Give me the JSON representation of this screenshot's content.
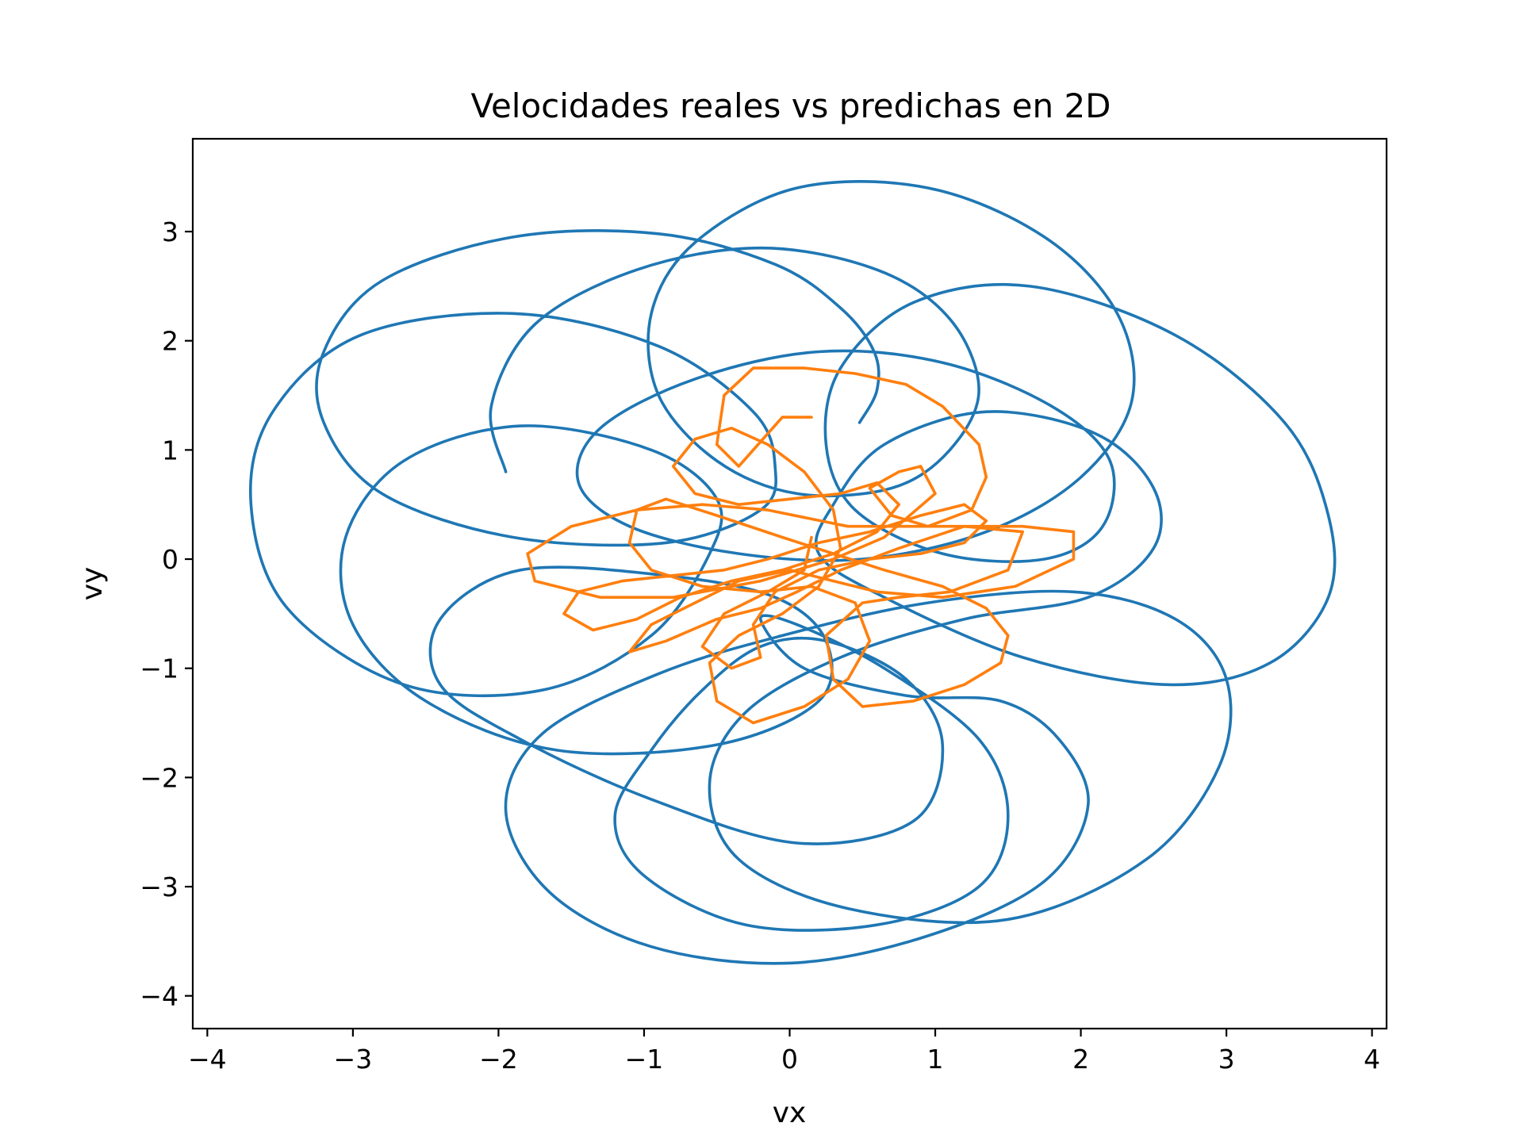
{
  "chart_data": {
    "type": "line",
    "title": "Velocidades reales vs predichas en 2D",
    "xlabel": "vx",
    "ylabel": "vy",
    "xlim": [
      -4.1,
      4.1
    ],
    "ylim": [
      -4.3,
      3.85
    ],
    "xticks": [
      -4,
      -3,
      -2,
      -1,
      0,
      1,
      2,
      3,
      4
    ],
    "yticks": [
      3,
      2,
      1,
      0,
      -1,
      -2,
      -3,
      -4
    ],
    "xtick_labels": [
      "−4",
      "−3",
      "−2",
      "−1",
      "0",
      "1",
      "2",
      "3",
      "4"
    ],
    "ytick_labels": [
      "3",
      "2",
      "1",
      "0",
      "−1",
      "−2",
      "−3",
      "−4"
    ],
    "grid": false,
    "legend": "none",
    "series": [
      {
        "color": "#1f77b4",
        "style": "smooth",
        "points": [
          [
            0.48,
            1.25
          ],
          [
            0.6,
            1.55
          ],
          [
            0.58,
            1.9
          ],
          [
            0.35,
            2.3
          ],
          [
            -0.1,
            2.7
          ],
          [
            -0.9,
            2.98
          ],
          [
            -1.9,
            2.95
          ],
          [
            -2.8,
            2.55
          ],
          [
            -3.2,
            1.9
          ],
          [
            -3.2,
            1.25
          ],
          [
            -2.8,
            0.6
          ],
          [
            -1.9,
            0.2
          ],
          [
            -0.85,
            0.15
          ],
          [
            -0.2,
            0.45
          ],
          [
            -0.1,
            0.85
          ],
          [
            -0.25,
            1.35
          ],
          [
            -0.9,
            1.95
          ],
          [
            -1.9,
            2.25
          ],
          [
            -2.95,
            2.05
          ],
          [
            -3.55,
            1.35
          ],
          [
            -3.7,
            0.5
          ],
          [
            -3.45,
            -0.45
          ],
          [
            -2.65,
            -1.15
          ],
          [
            -1.7,
            -1.2
          ],
          [
            -0.95,
            -0.7
          ],
          [
            -0.55,
            0.05
          ],
          [
            -0.5,
            0.55
          ],
          [
            -0.95,
            1.0
          ],
          [
            -1.85,
            1.22
          ],
          [
            -2.65,
            0.9
          ],
          [
            -3.05,
            0.2
          ],
          [
            -3.0,
            -0.6
          ],
          [
            -2.5,
            -1.3
          ],
          [
            -1.6,
            -1.75
          ],
          [
            -0.5,
            -1.7
          ],
          [
            0.2,
            -1.3
          ],
          [
            0.25,
            -0.75
          ],
          [
            -0.1,
            -0.35
          ],
          [
            -0.85,
            -0.15
          ],
          [
            -1.85,
            -0.1
          ],
          [
            -2.4,
            -0.55
          ],
          [
            -2.4,
            -1.15
          ],
          [
            -1.85,
            -1.65
          ],
          [
            -0.95,
            -2.2
          ],
          [
            0.05,
            -2.6
          ],
          [
            0.85,
            -2.4
          ],
          [
            1.05,
            -1.7
          ],
          [
            0.8,
            -1.1
          ],
          [
            0.25,
            -0.75
          ],
          [
            -0.2,
            -0.8
          ],
          [
            -0.6,
            -1.2
          ],
          [
            -0.95,
            -1.75
          ],
          [
            -1.2,
            -2.35
          ],
          [
            -1.0,
            -2.9
          ],
          [
            -0.3,
            -3.35
          ],
          [
            0.6,
            -3.35
          ],
          [
            1.3,
            -3.0
          ],
          [
            1.5,
            -2.35
          ],
          [
            1.3,
            -1.65
          ],
          [
            0.65,
            -1.0
          ],
          [
            0.05,
            -0.6
          ],
          [
            -0.2,
            -0.55
          ],
          [
            0.1,
            -1.0
          ],
          [
            0.8,
            -1.25
          ],
          [
            1.45,
            -1.3
          ],
          [
            1.85,
            -1.65
          ],
          [
            2.05,
            -2.25
          ],
          [
            1.75,
            -2.95
          ],
          [
            0.95,
            -3.45
          ],
          [
            0.0,
            -3.7
          ],
          [
            -0.95,
            -3.55
          ],
          [
            -1.65,
            -3.05
          ],
          [
            -1.95,
            -2.3
          ],
          [
            -1.7,
            -1.6
          ],
          [
            -0.9,
            -1.05
          ],
          [
            -0.05,
            -0.7
          ],
          [
            0.95,
            -0.4
          ],
          [
            1.95,
            -0.3
          ],
          [
            2.65,
            -0.55
          ],
          [
            3.0,
            -1.1
          ],
          [
            2.95,
            -1.9
          ],
          [
            2.45,
            -2.75
          ],
          [
            1.5,
            -3.3
          ],
          [
            0.4,
            -3.2
          ],
          [
            -0.35,
            -2.75
          ],
          [
            -0.55,
            -2.05
          ],
          [
            -0.3,
            -1.4
          ],
          [
            0.35,
            -0.9
          ],
          [
            1.2,
            -0.55
          ],
          [
            2.05,
            -0.35
          ],
          [
            2.5,
            0.1
          ],
          [
            2.5,
            0.65
          ],
          [
            2.1,
            1.15
          ],
          [
            1.35,
            1.35
          ],
          [
            0.65,
            1.05
          ],
          [
            0.3,
            0.5
          ],
          [
            0.2,
            0.05
          ],
          [
            0.65,
            -0.35
          ],
          [
            1.6,
            -0.9
          ],
          [
            2.6,
            -1.15
          ],
          [
            3.3,
            -0.95
          ],
          [
            3.7,
            -0.35
          ],
          [
            3.7,
            0.4
          ],
          [
            3.4,
            1.25
          ],
          [
            2.65,
            2.05
          ],
          [
            1.65,
            2.5
          ],
          [
            0.85,
            2.35
          ],
          [
            0.35,
            1.75
          ],
          [
            0.25,
            1.05
          ],
          [
            0.45,
            0.45
          ],
          [
            1.05,
            0.05
          ],
          [
            1.75,
            0.0
          ],
          [
            2.15,
            0.3
          ],
          [
            2.2,
            0.9
          ],
          [
            1.8,
            1.4
          ],
          [
            1.05,
            1.8
          ],
          [
            0.2,
            1.9
          ],
          [
            -0.65,
            1.65
          ],
          [
            -1.3,
            1.2
          ],
          [
            -1.45,
            0.7
          ],
          [
            -1.1,
            0.3
          ],
          [
            -0.35,
            0.05
          ],
          [
            0.5,
            0.0
          ],
          [
            1.35,
            0.25
          ],
          [
            2.0,
            0.75
          ],
          [
            2.35,
            1.45
          ],
          [
            2.25,
            2.25
          ],
          [
            1.75,
            2.95
          ],
          [
            0.95,
            3.4
          ],
          [
            0.05,
            3.4
          ],
          [
            -0.65,
            2.9
          ],
          [
            -0.95,
            2.25
          ],
          [
            -0.9,
            1.5
          ],
          [
            -0.5,
            0.9
          ],
          [
            0.05,
            0.6
          ],
          [
            0.7,
            0.65
          ],
          [
            1.1,
            1.0
          ],
          [
            1.3,
            1.55
          ],
          [
            1.1,
            2.2
          ],
          [
            0.6,
            2.65
          ],
          [
            -0.2,
            2.85
          ],
          [
            -1.05,
            2.65
          ],
          [
            -1.75,
            2.15
          ],
          [
            -2.05,
            1.4
          ],
          [
            -1.95,
            0.8
          ]
        ]
      },
      {
        "color": "#ff7f0e",
        "style": "linear",
        "points": [
          [
            0.15,
            1.3
          ],
          [
            -0.05,
            1.3
          ],
          [
            -0.35,
            0.85
          ],
          [
            -0.5,
            1.05
          ],
          [
            -0.45,
            1.5
          ],
          [
            -0.25,
            1.75
          ],
          [
            0.1,
            1.75
          ],
          [
            0.45,
            1.7
          ],
          [
            0.8,
            1.6
          ],
          [
            1.05,
            1.4
          ],
          [
            1.3,
            1.05
          ],
          [
            1.35,
            0.75
          ],
          [
            1.25,
            0.45
          ],
          [
            0.95,
            0.3
          ],
          [
            0.7,
            0.4
          ],
          [
            0.55,
            0.65
          ],
          [
            0.75,
            0.8
          ],
          [
            0.9,
            0.85
          ],
          [
            1.0,
            0.6
          ],
          [
            0.65,
            0.2
          ],
          [
            0.3,
            0.0
          ],
          [
            -0.2,
            -0.2
          ],
          [
            -0.8,
            -0.35
          ],
          [
            -1.3,
            -0.35
          ],
          [
            -1.75,
            -0.2
          ],
          [
            -1.8,
            0.05
          ],
          [
            -1.5,
            0.3
          ],
          [
            -1.05,
            0.45
          ],
          [
            -0.6,
            0.5
          ],
          [
            -0.15,
            0.45
          ],
          [
            0.4,
            0.3
          ],
          [
            1.05,
            0.3
          ],
          [
            1.6,
            0.3
          ],
          [
            1.95,
            0.25
          ],
          [
            1.95,
            0.0
          ],
          [
            1.55,
            -0.25
          ],
          [
            1.05,
            -0.35
          ],
          [
            0.6,
            -0.3
          ],
          [
            0.3,
            -0.2
          ],
          [
            0.0,
            -0.1
          ],
          [
            -0.35,
            -0.2
          ],
          [
            -0.65,
            -0.4
          ],
          [
            -0.95,
            -0.6
          ],
          [
            -1.1,
            -0.85
          ],
          [
            -0.85,
            -0.75
          ],
          [
            -0.5,
            -0.55
          ],
          [
            -0.2,
            -0.45
          ],
          [
            0.05,
            -0.3
          ],
          [
            0.35,
            -0.1
          ],
          [
            0.75,
            0.1
          ],
          [
            1.2,
            0.3
          ],
          [
            1.6,
            0.25
          ],
          [
            1.5,
            -0.1
          ],
          [
            1.1,
            -0.3
          ],
          [
            0.75,
            -0.35
          ],
          [
            0.5,
            -0.4
          ],
          [
            0.25,
            -0.7
          ],
          [
            0.3,
            -1.1
          ],
          [
            0.5,
            -1.35
          ],
          [
            0.85,
            -1.3
          ],
          [
            1.2,
            -1.15
          ],
          [
            1.45,
            -0.95
          ],
          [
            1.5,
            -0.7
          ],
          [
            1.35,
            -0.45
          ],
          [
            1.05,
            -0.25
          ],
          [
            0.65,
            -0.1
          ],
          [
            0.3,
            0.05
          ],
          [
            -0.05,
            0.2
          ],
          [
            -0.5,
            0.4
          ],
          [
            -0.85,
            0.55
          ],
          [
            -1.05,
            0.45
          ],
          [
            -1.1,
            0.15
          ],
          [
            -0.95,
            -0.1
          ],
          [
            -0.6,
            -0.25
          ],
          [
            -0.2,
            -0.3
          ],
          [
            0.15,
            -0.25
          ],
          [
            0.45,
            -0.4
          ],
          [
            0.55,
            -0.75
          ],
          [
            0.4,
            -1.1
          ],
          [
            0.1,
            -1.35
          ],
          [
            -0.25,
            -1.5
          ],
          [
            -0.5,
            -1.3
          ],
          [
            -0.55,
            -0.95
          ],
          [
            -0.35,
            -0.7
          ],
          [
            -0.05,
            -0.5
          ],
          [
            0.2,
            -0.25
          ],
          [
            0.35,
            0.1
          ],
          [
            0.3,
            0.45
          ],
          [
            0.1,
            0.8
          ],
          [
            -0.15,
            1.05
          ],
          [
            -0.4,
            1.2
          ],
          [
            -0.65,
            1.1
          ],
          [
            -0.8,
            0.85
          ],
          [
            -0.65,
            0.6
          ],
          [
            -0.35,
            0.5
          ],
          [
            0.0,
            0.55
          ],
          [
            0.35,
            0.6
          ],
          [
            0.6,
            0.7
          ],
          [
            0.75,
            0.5
          ],
          [
            0.6,
            0.25
          ],
          [
            0.3,
            0.05
          ],
          [
            -0.05,
            -0.1
          ],
          [
            -0.4,
            -0.2
          ],
          [
            -0.75,
            -0.35
          ],
          [
            -1.05,
            -0.55
          ],
          [
            -1.35,
            -0.65
          ],
          [
            -1.55,
            -0.5
          ],
          [
            -1.45,
            -0.3
          ],
          [
            -1.15,
            -0.2
          ],
          [
            -0.8,
            -0.15
          ],
          [
            -0.45,
            -0.1
          ],
          [
            -0.15,
            0.0
          ],
          [
            0.2,
            0.15
          ],
          [
            0.55,
            0.25
          ],
          [
            0.9,
            0.4
          ],
          [
            1.2,
            0.5
          ],
          [
            1.35,
            0.35
          ],
          [
            1.2,
            0.15
          ],
          [
            0.9,
            0.05
          ],
          [
            0.55,
            0.0
          ],
          [
            0.2,
            -0.1
          ],
          [
            -0.1,
            -0.3
          ],
          [
            -0.25,
            -0.6
          ],
          [
            -0.2,
            -0.9
          ],
          [
            -0.4,
            -1.0
          ],
          [
            -0.6,
            -0.8
          ],
          [
            -0.45,
            -0.5
          ],
          [
            -0.15,
            -0.3
          ],
          [
            0.1,
            -0.1
          ],
          [
            0.15,
            0.2
          ]
        ]
      }
    ]
  }
}
